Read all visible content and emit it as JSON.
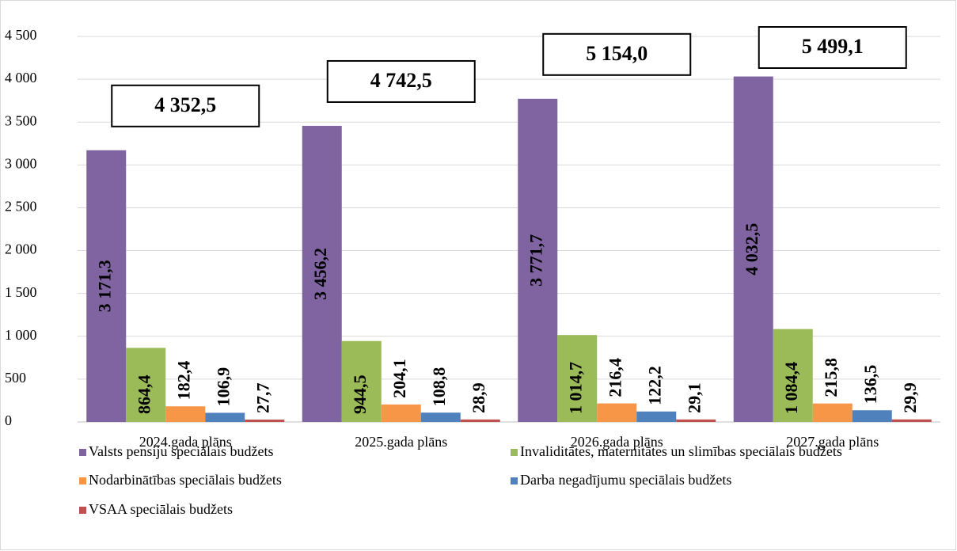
{
  "chart_data": {
    "type": "bar",
    "categories": [
      "2024.gada plāns",
      "2025.gada plāns",
      "2026.gada plāns",
      "2027.gada plāns"
    ],
    "series": [
      {
        "name": "Valsts pensiju speciālais budžets",
        "color": "#8064a2",
        "values": [
          3171.3,
          3456.2,
          3771.7,
          4032.5
        ],
        "value_labels": [
          "3 171,3",
          "3 456,2",
          "3 771,7",
          "4 032,5"
        ]
      },
      {
        "name": "Invaliditātes, maternitātes un slimības speciālais budžets",
        "color": "#9bbb59",
        "values": [
          864.4,
          944.5,
          1014.7,
          1084.4
        ],
        "value_labels": [
          "864,4",
          "944,5",
          "1 014,7",
          "1 084,4"
        ]
      },
      {
        "name": "Nodarbinātības speciālais budžets",
        "color": "#f79646",
        "values": [
          182.4,
          204.1,
          216.4,
          215.8
        ],
        "value_labels": [
          "182,4",
          "204,1",
          "216,4",
          "215,8"
        ]
      },
      {
        "name": "Darba negadījumu speciālais budžets",
        "color": "#4f81bd",
        "values": [
          106.9,
          108.8,
          122.2,
          136.5
        ],
        "value_labels": [
          "106,9",
          "108,8",
          "122,2",
          "136,5"
        ]
      },
      {
        "name": "VSAA speciālais budžets",
        "color": "#c0504d",
        "values": [
          27.7,
          28.9,
          29.1,
          29.9
        ],
        "value_labels": [
          "27,7",
          "28,9",
          "29,1",
          "29,9"
        ]
      }
    ],
    "totals": [
      {
        "value": 4352.5,
        "label": "4 352,5"
      },
      {
        "value": 4742.5,
        "label": "4 742,5"
      },
      {
        "value": 5154.0,
        "label": "5 154,0"
      },
      {
        "value": 5499.1,
        "label": "5 499,1"
      }
    ],
    "ylim": [
      0,
      4500
    ],
    "yticks": [
      0,
      500,
      {
        "value": 1000,
        "label": "1 000"
      },
      {
        "value": 1500,
        "label": "1 500"
      },
      {
        "value": 2000,
        "label": "2 000"
      },
      {
        "value": 2500,
        "label": "2 500"
      },
      {
        "value": 3000,
        "label": "3 000"
      },
      {
        "value": 3500,
        "label": "3 500"
      },
      {
        "value": 4000,
        "label": "4 000"
      },
      {
        "value": 4500,
        "label": "4 500"
      }
    ],
    "grid": true,
    "legend": "bottom"
  }
}
